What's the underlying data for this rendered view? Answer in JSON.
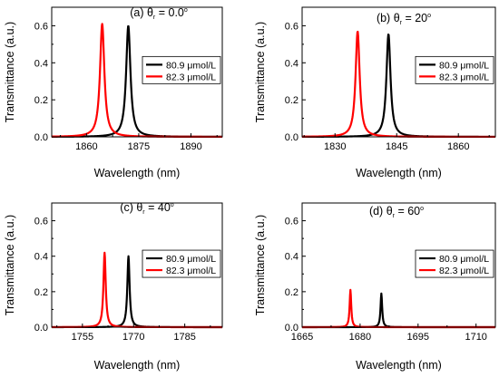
{
  "chart_data": [
    {
      "type": "line",
      "panel_label": "(a)",
      "angle_text": "θ",
      "angle_sub": "r",
      "angle_value": "= 0.0",
      "degree_mark": "o",
      "xlabel": "Wavelength (nm)",
      "ylabel": "Transmittance (a.u.)",
      "xlim": [
        1850,
        1899
      ],
      "ylim": [
        0,
        0.7
      ],
      "xticks": [
        1860,
        1875,
        1890
      ],
      "yticks": [
        0.0,
        0.2,
        0.4,
        0.6
      ],
      "legend_position": "center-right",
      "series": [
        {
          "name": "80.9 μmol/L",
          "color": "#000000",
          "peak_x": 1872.0,
          "peak_y": 0.6,
          "hwhm": 0.75
        },
        {
          "name": "82.3 μmol/L",
          "color": "#ff0000",
          "peak_x": 1864.5,
          "peak_y": 0.61,
          "hwhm": 0.75
        }
      ]
    },
    {
      "type": "line",
      "panel_label": "(b)",
      "angle_text": "θ",
      "angle_sub": "r",
      "angle_value": "= 20",
      "degree_mark": "o",
      "xlabel": "Wavelength (nm)",
      "ylabel": "Transmittance (a.u.)",
      "xlim": [
        1822,
        1869
      ],
      "ylim": [
        0,
        0.7
      ],
      "xticks": [
        1830,
        1845,
        1860
      ],
      "yticks": [
        0.0,
        0.2,
        0.4,
        0.6
      ],
      "legend_position": "center-right",
      "series": [
        {
          "name": "80.9 μmol/L",
          "color": "#000000",
          "peak_x": 1843.0,
          "peak_y": 0.555,
          "hwhm": 0.6
        },
        {
          "name": "82.3 μmol/L",
          "color": "#ff0000",
          "peak_x": 1835.5,
          "peak_y": 0.57,
          "hwhm": 0.6
        }
      ]
    },
    {
      "type": "line",
      "panel_label": "(c)",
      "angle_text": "θ",
      "angle_sub": "r",
      "angle_value": "= 40",
      "degree_mark": "o",
      "xlabel": "Wavelength (nm)",
      "ylabel": "Transmittance (a.u.)",
      "xlim": [
        1746,
        1796
      ],
      "ylim": [
        0,
        0.7
      ],
      "xticks": [
        1755,
        1770,
        1785
      ],
      "yticks": [
        0.0,
        0.2,
        0.4,
        0.6
      ],
      "legend_position": "center-right",
      "series": [
        {
          "name": "80.9 μmol/L",
          "color": "#000000",
          "peak_x": 1768.5,
          "peak_y": 0.4,
          "hwhm": 0.4
        },
        {
          "name": "82.3 μmol/L",
          "color": "#ff0000",
          "peak_x": 1761.5,
          "peak_y": 0.42,
          "hwhm": 0.4
        }
      ]
    },
    {
      "type": "line",
      "panel_label": "(d)",
      "angle_text": "θ",
      "angle_sub": "r",
      "angle_value": "= 60",
      "degree_mark": "o",
      "xlabel": "Wavelength (nm)",
      "ylabel": "Transmittance (a.u.)",
      "xlim": [
        1665,
        1715
      ],
      "ylim": [
        0,
        0.7
      ],
      "xticks": [
        1665,
        1680,
        1695,
        1710
      ],
      "yticks": [
        0.0,
        0.2,
        0.4,
        0.6
      ],
      "legend_position": "center-right",
      "series": [
        {
          "name": "80.9 μmol/L",
          "color": "#000000",
          "peak_x": 1685.5,
          "peak_y": 0.19,
          "hwhm": 0.25
        },
        {
          "name": "82.3 μmol/L",
          "color": "#ff0000",
          "peak_x": 1677.5,
          "peak_y": 0.21,
          "hwhm": 0.25
        }
      ]
    }
  ]
}
